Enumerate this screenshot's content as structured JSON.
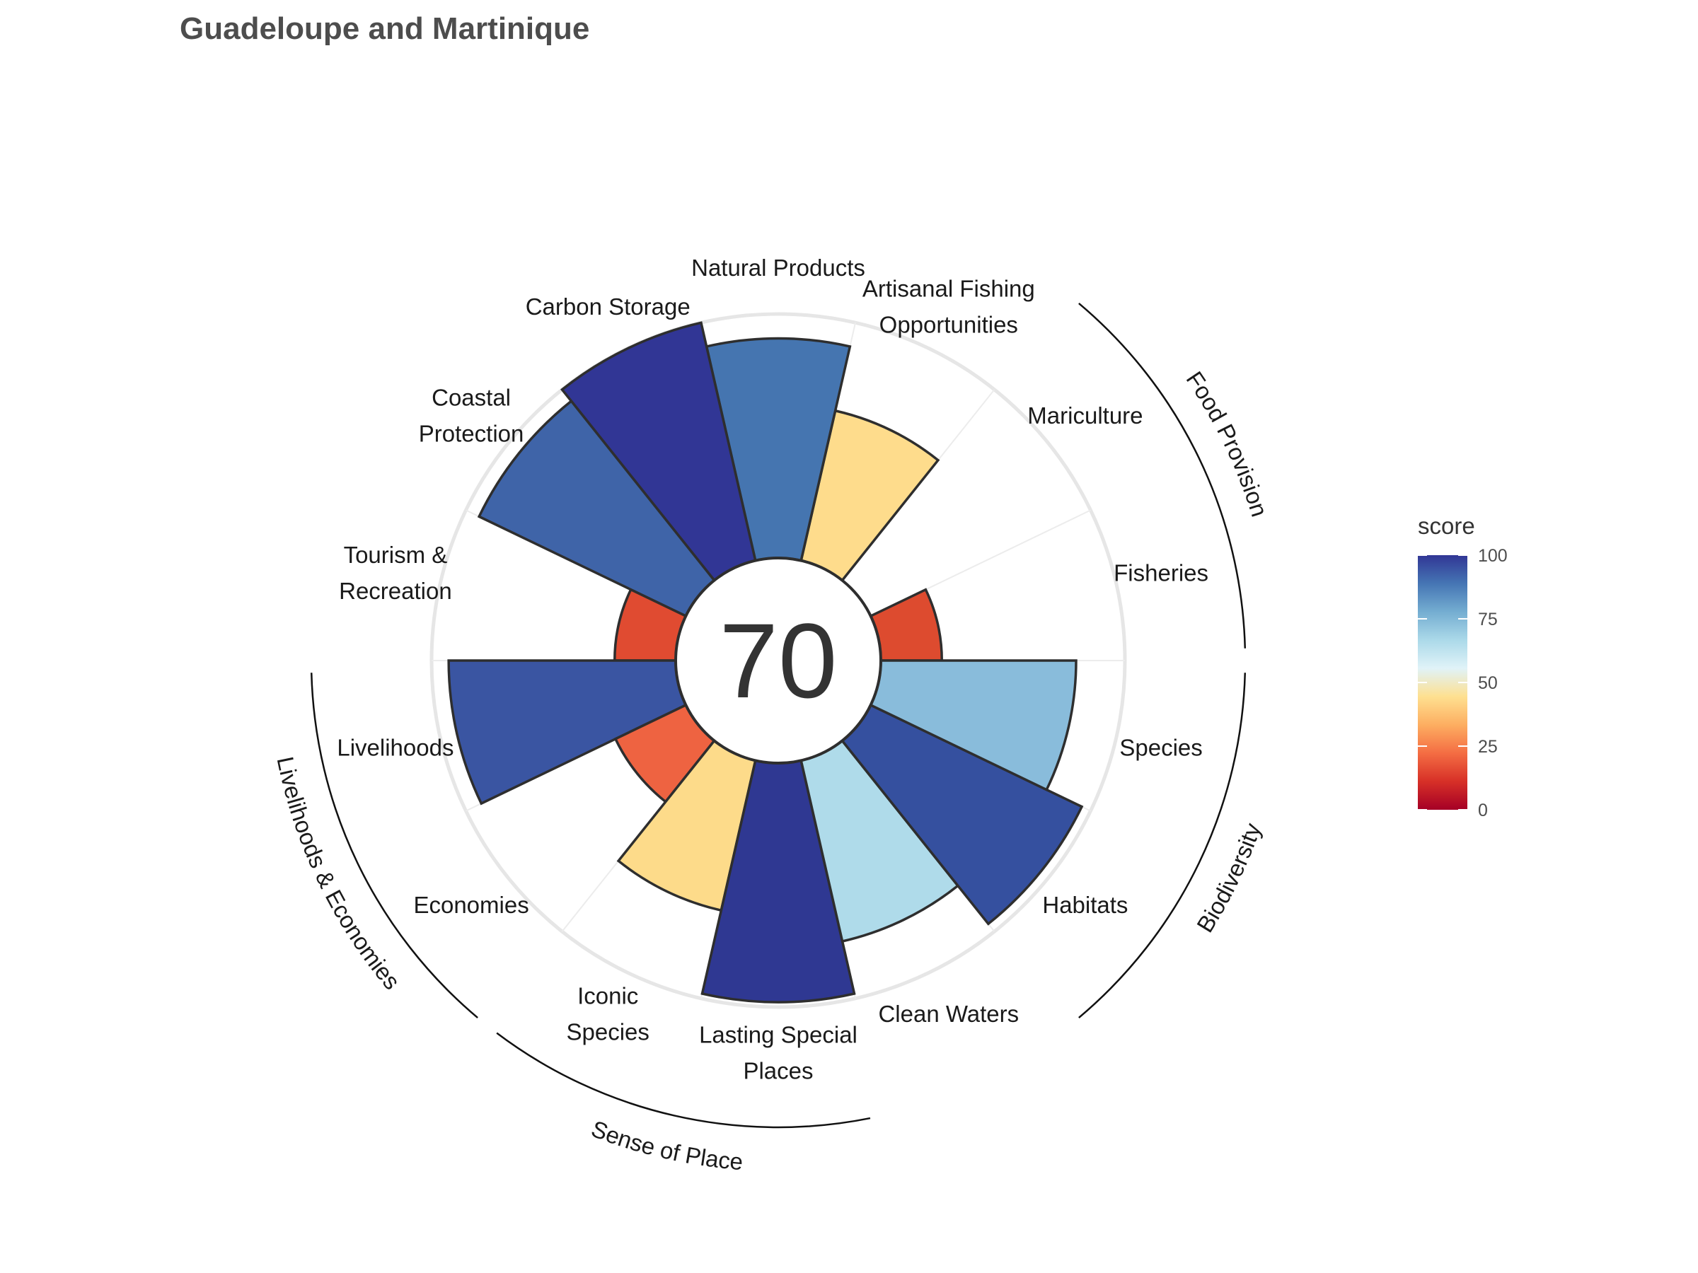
{
  "chart_data": {
    "type": "polar-bar",
    "title": "Guadeloupe and Martinique",
    "center_score": "70",
    "ylim": [
      0,
      100
    ],
    "goals": [
      {
        "label": [
          "Fisheries"
        ],
        "value": 25,
        "color": "#dd4b2f"
      },
      {
        "label": [
          "Mariculture"
        ],
        "value": 0,
        "color": "#ffffff"
      },
      {
        "label": [
          "Artisanal Fishing",
          "Opportunities"
        ],
        "value": 63,
        "color": "#fedc8c"
      },
      {
        "label": [
          "Natural Products"
        ],
        "value": 90,
        "color": "#4575b0"
      },
      {
        "label": [
          "Carbon Storage"
        ],
        "value": 100,
        "color": "#313695"
      },
      {
        "label": [
          "Coastal",
          "Protection"
        ],
        "value": 94,
        "color": "#3f64a8"
      },
      {
        "label": [
          "Tourism &",
          "Recreation"
        ],
        "value": 25,
        "color": "#e04b31"
      },
      {
        "label": [
          "Livelihoods"
        ],
        "value": 93,
        "color": "#3a55a2"
      },
      {
        "label": [
          "Economies"
        ],
        "value": 32,
        "color": "#ee6341"
      },
      {
        "label": [
          "Iconic",
          "Species"
        ],
        "value": 63,
        "color": "#fddb8a"
      },
      {
        "label": [
          "Lasting Special",
          "Places"
        ],
        "value": 98,
        "color": "#2f3892"
      },
      {
        "label": [
          "Clean Waters"
        ],
        "value": 76,
        "color": "#afdbea"
      },
      {
        "label": [
          "Habitats"
        ],
        "value": 96,
        "color": "#35509f"
      },
      {
        "label": [
          "Species"
        ],
        "value": 80,
        "color": "#89bcdb"
      }
    ],
    "groups": [
      {
        "name": "Food Provision"
      },
      {
        "name": "Biodiversity"
      },
      {
        "name": "Sense of Place"
      },
      {
        "name": "Livelihoods & Economies"
      }
    ],
    "legend": {
      "title": "score",
      "ticks": [
        "0",
        "25",
        "50",
        "75",
        "100"
      ],
      "colors": [
        "#a50026",
        "#d73027",
        "#f46d43",
        "#fdae61",
        "#fee090",
        "#e0f3f8",
        "#abd9e9",
        "#74add1",
        "#4575b4",
        "#313695"
      ]
    }
  }
}
